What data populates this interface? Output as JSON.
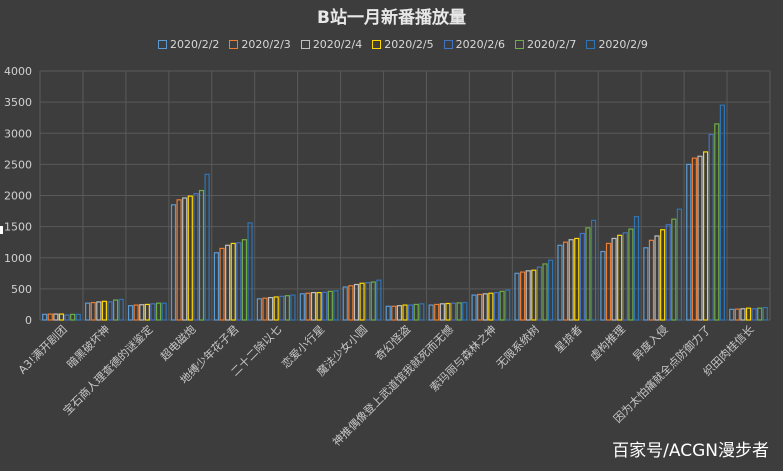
{
  "chart_data": {
    "type": "bar",
    "title": "B站一月新番播放量",
    "xlabel": "",
    "ylabel": "",
    "ylim": [
      0,
      4000
    ],
    "yticks": [
      0,
      500,
      1000,
      1500,
      2000,
      2500,
      3000,
      3500,
      4000
    ],
    "grid": true,
    "legend_position": "top",
    "categories": [
      "A3!满开剧团",
      "暗黑破坏神",
      "宝石商人理查德的谜鉴定",
      "超电磁炮",
      "地缚少年花子君",
      "二十二除以七",
      "恋爱小行星",
      "魔法少女小圆",
      "奇幻怪盗",
      "神推偶像登上武道馆我就死而无憾",
      "索玛丽与森林之神",
      "无限系统树",
      "星掠者",
      "虚构推理",
      "异度入侵",
      "因为太怕痛就全点防御力了",
      "织田肉桂信长"
    ],
    "series": [
      {
        "name": "2020/2/2",
        "color": "#5b9bd5",
        "values": [
          90,
          270,
          230,
          1850,
          1080,
          340,
          420,
          530,
          220,
          240,
          400,
          750,
          1200,
          1100,
          1160,
          2500,
          170
        ]
      },
      {
        "name": "2020/2/3",
        "color": "#ed7d31",
        "values": [
          95,
          280,
          240,
          1930,
          1150,
          350,
          430,
          550,
          220,
          250,
          410,
          770,
          1250,
          1230,
          1280,
          2600,
          175
        ]
      },
      {
        "name": "2020/2/4",
        "color": "#bfbfbf",
        "values": [
          95,
          290,
          245,
          1960,
          1200,
          360,
          440,
          570,
          230,
          260,
          420,
          790,
          1290,
          1310,
          1350,
          2630,
          180
        ]
      },
      {
        "name": "2020/2/5",
        "color": "#ffd700",
        "values": [
          95,
          300,
          250,
          1990,
          1230,
          370,
          440,
          590,
          240,
          265,
          430,
          800,
          1310,
          1360,
          1450,
          2700,
          190
        ]
      },
      {
        "name": "2020/2/6",
        "color": "#4472c4",
        "values": [
          80,
          290,
          260,
          2030,
          1240,
          380,
          445,
          600,
          240,
          270,
          440,
          850,
          1390,
          1400,
          1530,
          2980,
          180
        ]
      },
      {
        "name": "2020/2/7",
        "color": "#70ad47",
        "values": [
          90,
          320,
          270,
          2080,
          1290,
          390,
          460,
          610,
          250,
          275,
          460,
          900,
          1480,
          1460,
          1620,
          3150,
          190
        ]
      },
      {
        "name": "2020/2/9",
        "color": "#2e75b6",
        "values": [
          90,
          330,
          270,
          2340,
          1560,
          400,
          470,
          640,
          260,
          280,
          480,
          960,
          1600,
          1660,
          1780,
          3450,
          200
        ]
      }
    ]
  },
  "watermark": "百家号/ACGN漫步者"
}
